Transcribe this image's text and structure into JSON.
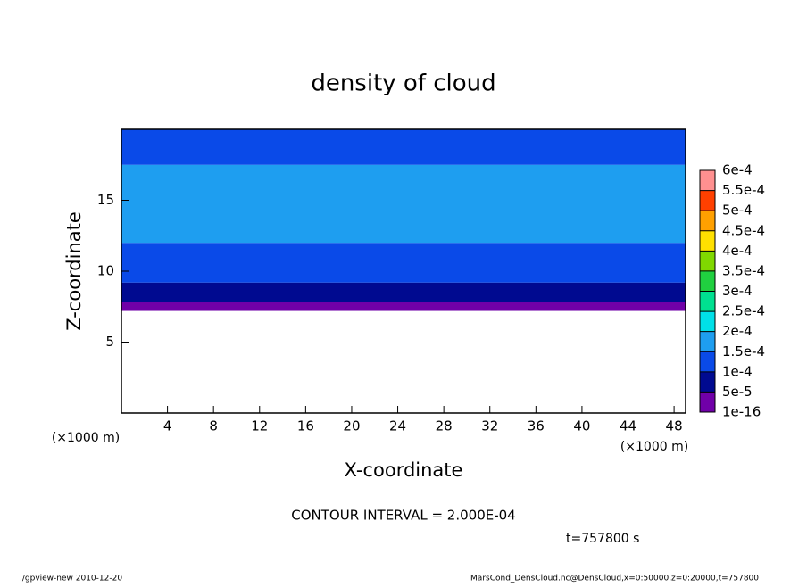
{
  "chart_data": {
    "type": "contour",
    "title": "density of cloud",
    "x_label": "X-coordinate",
    "y_label": "Z-coordinate",
    "x_units": "(×1000 m)",
    "xlim": [
      0,
      49
    ],
    "ylim": [
      0,
      20
    ],
    "xticks": [
      4,
      8,
      12,
      16,
      20,
      24,
      28,
      32,
      36,
      40,
      44,
      48
    ],
    "yticks": [
      5,
      10,
      15
    ],
    "field": {
      "z_edges": [
        7.2,
        7.8,
        9.2,
        12,
        17.5,
        20
      ],
      "values": [
        3e-05,
        7e-05,
        0.00012,
        0.00017,
        0.00012
      ]
    },
    "levels": [
      {
        "value": 1e-16,
        "label": "1e-16"
      },
      {
        "value": 5e-05,
        "label": "5e-5"
      },
      {
        "value": 0.0001,
        "label": "1e-4"
      },
      {
        "value": 0.00015,
        "label": "1.5e-4"
      },
      {
        "value": 0.0002,
        "label": "2e-4"
      },
      {
        "value": 0.00025,
        "label": "2.5e-4"
      },
      {
        "value": 0.0003,
        "label": "3e-4"
      },
      {
        "value": 0.00035,
        "label": "3.5e-4"
      },
      {
        "value": 0.0004,
        "label": "4e-4"
      },
      {
        "value": 0.00045,
        "label": "4.5e-4"
      },
      {
        "value": 0.0005,
        "label": "5e-4"
      },
      {
        "value": 0.00055,
        "label": "5.5e-4"
      },
      {
        "value": 0.0006,
        "label": "6e-4"
      }
    ],
    "colors": [
      "#7000a8",
      "#000a90",
      "#0a4ae8",
      "#1e9ef0",
      "#00e0e8",
      "#00e090",
      "#20d040",
      "#80d800",
      "#ffe000",
      "#ffa000",
      "#ff4000",
      "#ff9090"
    ],
    "contour_interval": "CONTOUR INTERVAL = 2.000E-04",
    "time": "t=757800 s",
    "footer_left": "./gpview-new   2010-12-20",
    "footer_right": "MarsCond_DensCloud.nc@DensCloud,x=0:50000,z=0:20000,t=757800"
  }
}
